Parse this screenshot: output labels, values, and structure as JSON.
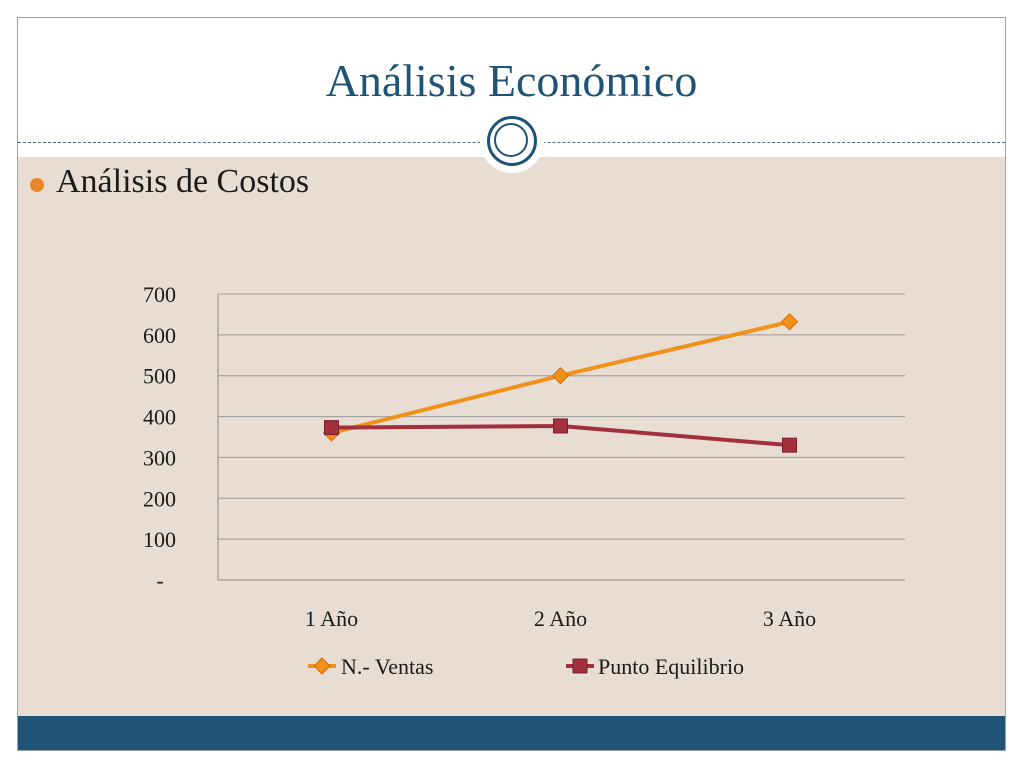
{
  "slide": {
    "title": "Análisis Económico",
    "bullet": "Análisis de Costos"
  },
  "colors": {
    "title": "#1f5476",
    "body_bg": "#e7ddd2",
    "footer": "#1f5476",
    "bullet": "#e8862a",
    "series_ventas": "#f0911c",
    "series_equilibrio": "#a3303d"
  },
  "chart_data": {
    "type": "line",
    "categories": [
      "1 Año",
      "2 Año",
      "3 Año"
    ],
    "series": [
      {
        "name": "N.- Ventas",
        "marker": "diamond",
        "values": [
          360,
          500,
          632
        ]
      },
      {
        "name": "Punto Equilibrio",
        "marker": "square",
        "values": [
          373,
          377,
          330
        ]
      }
    ],
    "yticks": [
      {
        "value": 0,
        "label": "-"
      },
      {
        "value": 100,
        "label": "100"
      },
      {
        "value": 200,
        "label": "200"
      },
      {
        "value": 300,
        "label": "300"
      },
      {
        "value": 400,
        "label": "400"
      },
      {
        "value": 500,
        "label": "500"
      },
      {
        "value": 600,
        "label": "600"
      },
      {
        "value": 700,
        "label": "700"
      }
    ],
    "ylim": [
      0,
      700
    ],
    "grid": true,
    "legend": "bottom"
  }
}
